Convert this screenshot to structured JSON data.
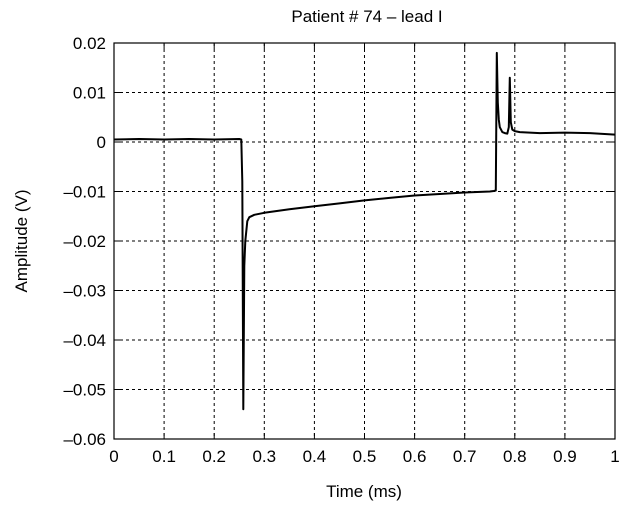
{
  "chart_data": {
    "type": "line",
    "title": "Patient # 74 – lead I",
    "xlabel": "Time (ms)",
    "ylabel": "Amplitude (V)",
    "xlim": [
      0,
      1
    ],
    "ylim": [
      -0.06,
      0.02
    ],
    "grid": true,
    "x_ticks": [
      "0",
      "0.1",
      "0.2",
      "0.3",
      "0.4",
      "0.5",
      "0.6",
      "0.7",
      "0.8",
      "0.9",
      "1"
    ],
    "y_ticks": [
      "0.02",
      "0.01",
      "0",
      "–0.01",
      "–0.02",
      "–0.03",
      "–0.04",
      "–0.05",
      "–0.06"
    ],
    "line_color": "#000000",
    "series": [
      {
        "x": [
          0,
          0.05,
          0.1,
          0.15,
          0.2,
          0.25,
          0.254,
          0.256,
          0.258,
          0.26,
          0.262,
          0.264,
          0.266,
          0.27,
          0.28,
          0.3,
          0.35,
          0.4,
          0.45,
          0.5,
          0.55,
          0.6,
          0.65,
          0.7,
          0.75,
          0.758,
          0.762,
          0.764,
          0.766,
          0.768,
          0.77,
          0.775,
          0.78,
          0.785,
          0.788,
          0.79,
          0.792,
          0.795,
          0.8,
          0.81,
          0.85,
          0.9,
          0.95,
          1.0
        ],
        "y": [
          0.0005,
          0.0006,
          0.0005,
          0.0006,
          0.0005,
          0.0006,
          0.0005,
          -0.008,
          -0.054,
          -0.025,
          -0.02,
          -0.018,
          -0.016,
          -0.0152,
          -0.0147,
          -0.0143,
          -0.0136,
          -0.013,
          -0.0124,
          -0.0118,
          -0.0113,
          -0.0108,
          -0.0105,
          -0.0102,
          -0.01,
          -0.0099,
          -0.0098,
          0.018,
          0.008,
          0.0045,
          0.003,
          0.002,
          0.0018,
          0.0017,
          0.003,
          0.013,
          0.004,
          0.0025,
          0.0022,
          0.002,
          0.0018,
          0.0019,
          0.0018,
          0.0015
        ]
      }
    ]
  }
}
